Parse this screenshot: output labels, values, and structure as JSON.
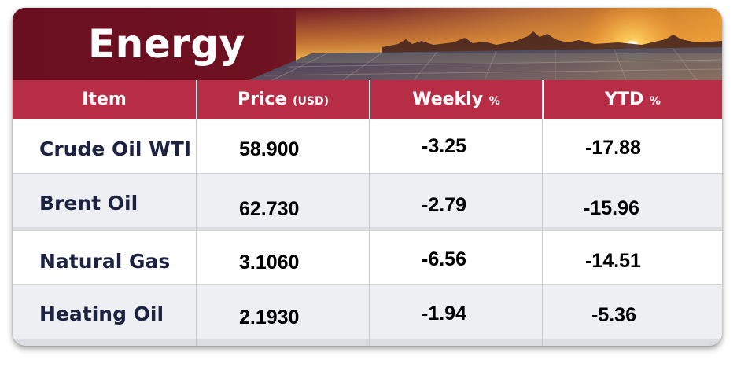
{
  "banner": {
    "title": "Energy",
    "image": "sunset-solar-panels"
  },
  "table": {
    "headers": {
      "item": "Item",
      "price": "Price",
      "price_unit": "(USD)",
      "weekly": "Weekly",
      "weekly_unit": "%",
      "ytd": "YTD",
      "ytd_unit": "%"
    },
    "rows": [
      {
        "item": "Crude Oil WTI",
        "price": "58.900",
        "weekly": "-3.25",
        "ytd": "-17.88"
      },
      {
        "item": "Brent Oil",
        "price": "62.730",
        "weekly": "-2.79",
        "ytd": "-15.96"
      },
      {
        "item": "Natural Gas",
        "price": "3.1060",
        "weekly": "-6.56",
        "ytd": "-14.51"
      },
      {
        "item": "Heating Oil",
        "price": "2.1930",
        "weekly": "-1.94",
        "ytd": "-5.36"
      }
    ]
  },
  "colors": {
    "banner_dark": "#6e1222",
    "header_red": "#b82d46",
    "item_text": "#1c2340",
    "row_alt": "#eeeff3"
  }
}
